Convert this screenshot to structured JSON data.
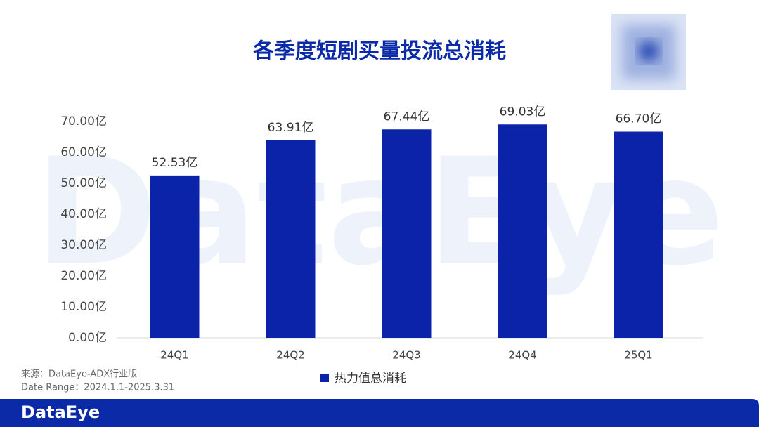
{
  "chart_data": {
    "type": "bar",
    "title": "各季度短剧买量投流总消耗",
    "categories": [
      "24Q1",
      "24Q2",
      "24Q3",
      "24Q4",
      "25Q1"
    ],
    "series": [
      {
        "name": "热力值总消耗",
        "color": "#0a23a8",
        "values": [
          52.53,
          63.91,
          67.44,
          69.03,
          66.7
        ],
        "value_labels": [
          "52.53亿",
          "63.91亿",
          "67.44亿",
          "69.03亿",
          "66.70亿"
        ]
      }
    ],
    "ylim": [
      0,
      70
    ],
    "yticks": [
      {
        "value": 0,
        "label": "0.00亿"
      },
      {
        "value": 10,
        "label": "10.00亿"
      },
      {
        "value": 20,
        "label": "20.00亿"
      },
      {
        "value": 30,
        "label": "30.00亿"
      },
      {
        "value": 40,
        "label": "40.00亿"
      },
      {
        "value": 50,
        "label": "50.00亿"
      },
      {
        "value": 60,
        "label": "60.00亿"
      },
      {
        "value": 70,
        "label": "70.00亿"
      }
    ],
    "grid": false,
    "legend": "bottom",
    "source": "来源：DataEye-ADX行业版",
    "date_range": "Date Range：2024.1.1-2025.3.31",
    "watermark": "DataEye",
    "brand": "DataEye"
  }
}
